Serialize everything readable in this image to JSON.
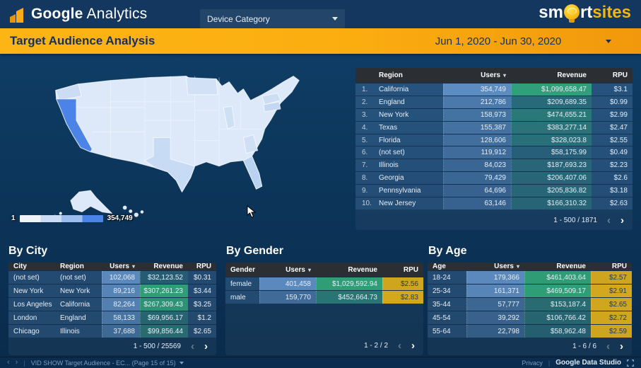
{
  "header": {
    "logo_google": "Google",
    "logo_analytics": "Analytics",
    "device_filter_label": "Device Category",
    "brand_part1": "sm",
    "brand_part2": "rt",
    "brand_part3": "sites"
  },
  "title_bar": {
    "title": "Target Audience Analysis",
    "date_range": "Jun 1, 2020 - Jun 30, 2020"
  },
  "map": {
    "legend_min": "1",
    "legend_max": "354,749",
    "highlight_state": "California",
    "colors": {
      "state_base": "#dde8f8",
      "state_max": "#4c83e6",
      "background": "#0c3459"
    }
  },
  "tables": {
    "region": {
      "numbered": true,
      "columns": [
        {
          "label": "Region",
          "align": "left",
          "heat": null
        },
        {
          "label": "Users",
          "align": "right",
          "heat": "blue",
          "sort": true
        },
        {
          "label": "Revenue",
          "align": "right",
          "heat": "green"
        },
        {
          "label": "RPU",
          "align": "right",
          "heat": null
        }
      ],
      "rows": [
        [
          "California",
          "354,749",
          "$1,099,658.47",
          "$3.1"
        ],
        [
          "England",
          "212,786",
          "$209,689.35",
          "$0.99"
        ],
        [
          "New York",
          "158,973",
          "$474,655.21",
          "$2.99"
        ],
        [
          "Texas",
          "155,387",
          "$383,277.14",
          "$2.47"
        ],
        [
          "Florida",
          "128,606",
          "$328,023.8",
          "$2.55"
        ],
        [
          "(not set)",
          "119,912",
          "$58,175.99",
          "$0.49"
        ],
        [
          "Illinois",
          "84,023",
          "$187,693.23",
          "$2.23"
        ],
        [
          "Georgia",
          "79,429",
          "$206,407.06",
          "$2.6"
        ],
        [
          "Pennsylvania",
          "64,696",
          "$205,836.82",
          "$3.18"
        ],
        [
          "New Jersey",
          "63,146",
          "$166,310.32",
          "$2.63"
        ]
      ],
      "pagination": "1 - 500 / 1871"
    },
    "city": {
      "title": "By City",
      "numbered": false,
      "columns": [
        {
          "label": "City",
          "align": "left",
          "heat": null
        },
        {
          "label": "Region",
          "align": "left",
          "heat": null
        },
        {
          "label": "Users",
          "align": "right",
          "heat": "blue",
          "sort": true
        },
        {
          "label": "Revenue",
          "align": "right",
          "heat": "green"
        },
        {
          "label": "RPU",
          "align": "right",
          "heat": null
        }
      ],
      "rows": [
        [
          "(not set)",
          "(not set)",
          "102,068",
          "$32,123.52",
          "$0.31"
        ],
        [
          "New York",
          "New York",
          "89,216",
          "$307,261.23",
          "$3.44"
        ],
        [
          "Los Angeles",
          "California",
          "82,264",
          "$267,309.43",
          "$3.25"
        ],
        [
          "London",
          "England",
          "58,133",
          "$69,956.17",
          "$1.2"
        ],
        [
          "Chicago",
          "Illinois",
          "37,688",
          "$99,856.44",
          "$2.65"
        ]
      ],
      "pagination": "1 - 500 / 25569"
    },
    "gender": {
      "title": "By Gender",
      "numbered": false,
      "columns": [
        {
          "label": "Gender",
          "align": "left",
          "heat": null
        },
        {
          "label": "Users",
          "align": "right",
          "heat": "blue",
          "sort": true
        },
        {
          "label": "Revenue",
          "align": "right",
          "heat": "green"
        },
        {
          "label": "RPU",
          "align": "right",
          "heat": "gold"
        }
      ],
      "rows": [
        [
          "female",
          "401,458",
          "$1,029,592.94",
          "$2.56"
        ],
        [
          "male",
          "159,770",
          "$452,664.73",
          "$2.83"
        ]
      ],
      "pagination": "1 - 2 / 2"
    },
    "age": {
      "title": "By Age",
      "numbered": false,
      "columns": [
        {
          "label": "Age",
          "align": "left",
          "heat": null
        },
        {
          "label": "Users",
          "align": "right",
          "heat": "blue",
          "sort": true
        },
        {
          "label": "Revenue",
          "align": "right",
          "heat": "green"
        },
        {
          "label": "RPU",
          "align": "right",
          "heat": "gold"
        }
      ],
      "rows": [
        [
          "18-24",
          "179,366",
          "$461,403.64",
          "$2.57"
        ],
        [
          "25-34",
          "161,371",
          "$469,509.17",
          "$2.91"
        ],
        [
          "35-44",
          "57,777",
          "$153,187.4",
          "$2.65"
        ],
        [
          "45-54",
          "39,292",
          "$106,766.42",
          "$2.72"
        ],
        [
          "55-64",
          "22,798",
          "$58,962.48",
          "$2.59"
        ]
      ],
      "pagination": "1 - 6 / 6"
    }
  },
  "footer": {
    "report_tab": "VID SHOW Target Audience - EC... (Page 15 of 15)",
    "privacy": "Privacy",
    "product": "Google Data Studio"
  },
  "colors": {
    "accent_orange": "#fcb514",
    "brand_yellow": "#f6b40e",
    "header_navy": "#14375f",
    "heat_blue": "#7dafeb",
    "heat_green": "#34be78",
    "heat_gold": "#d4a81c"
  }
}
